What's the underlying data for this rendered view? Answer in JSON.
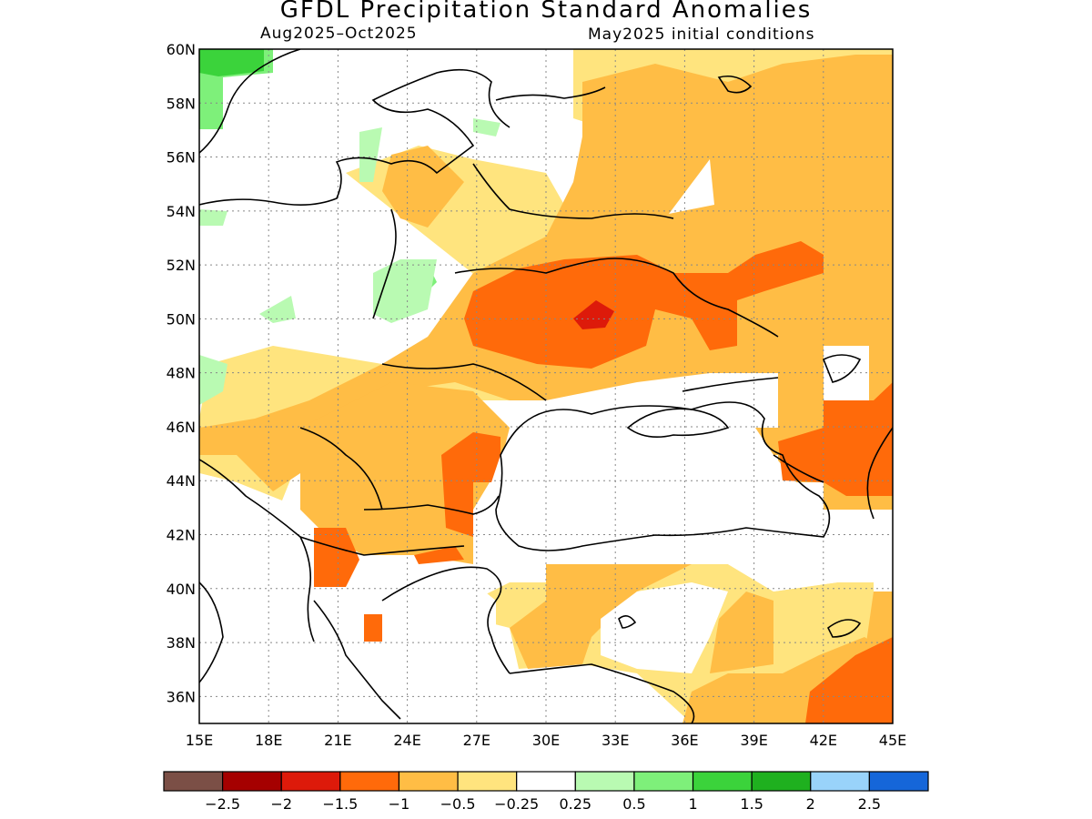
{
  "title": "GFDL Precipitation Standard Anomalies",
  "period": "Aug2025–Oct2025",
  "init": "May2025 initial conditions",
  "map": {
    "lon_range": [
      15,
      45
    ],
    "lat_range": [
      35,
      60
    ],
    "lon_ticks": [
      "15E",
      "18E",
      "21E",
      "24E",
      "27E",
      "30E",
      "33E",
      "36E",
      "39E",
      "42E",
      "45E"
    ],
    "lat_ticks": [
      "60N",
      "58N",
      "56N",
      "54N",
      "52N",
      "50N",
      "48N",
      "46N",
      "44N",
      "42N",
      "40N",
      "38N",
      "36N"
    ],
    "gridlines": "dotted"
  },
  "colorbar": {
    "colors": [
      "#7b4f46",
      "#a50000",
      "#dd1a0a",
      "#ff6a0a",
      "#ffbd45",
      "#ffe47e",
      "#ffffff",
      "#b9fab2",
      "#7ef07a",
      "#3bd33b",
      "#1fb01f",
      "#99d3fa",
      "#1566d9"
    ],
    "labels": [
      "−2.5",
      "−2",
      "−1.5",
      "−1",
      "−0.5",
      "−0.25",
      "0.25",
      "0.5",
      "1",
      "1.5",
      "2",
      "2.5"
    ]
  }
}
